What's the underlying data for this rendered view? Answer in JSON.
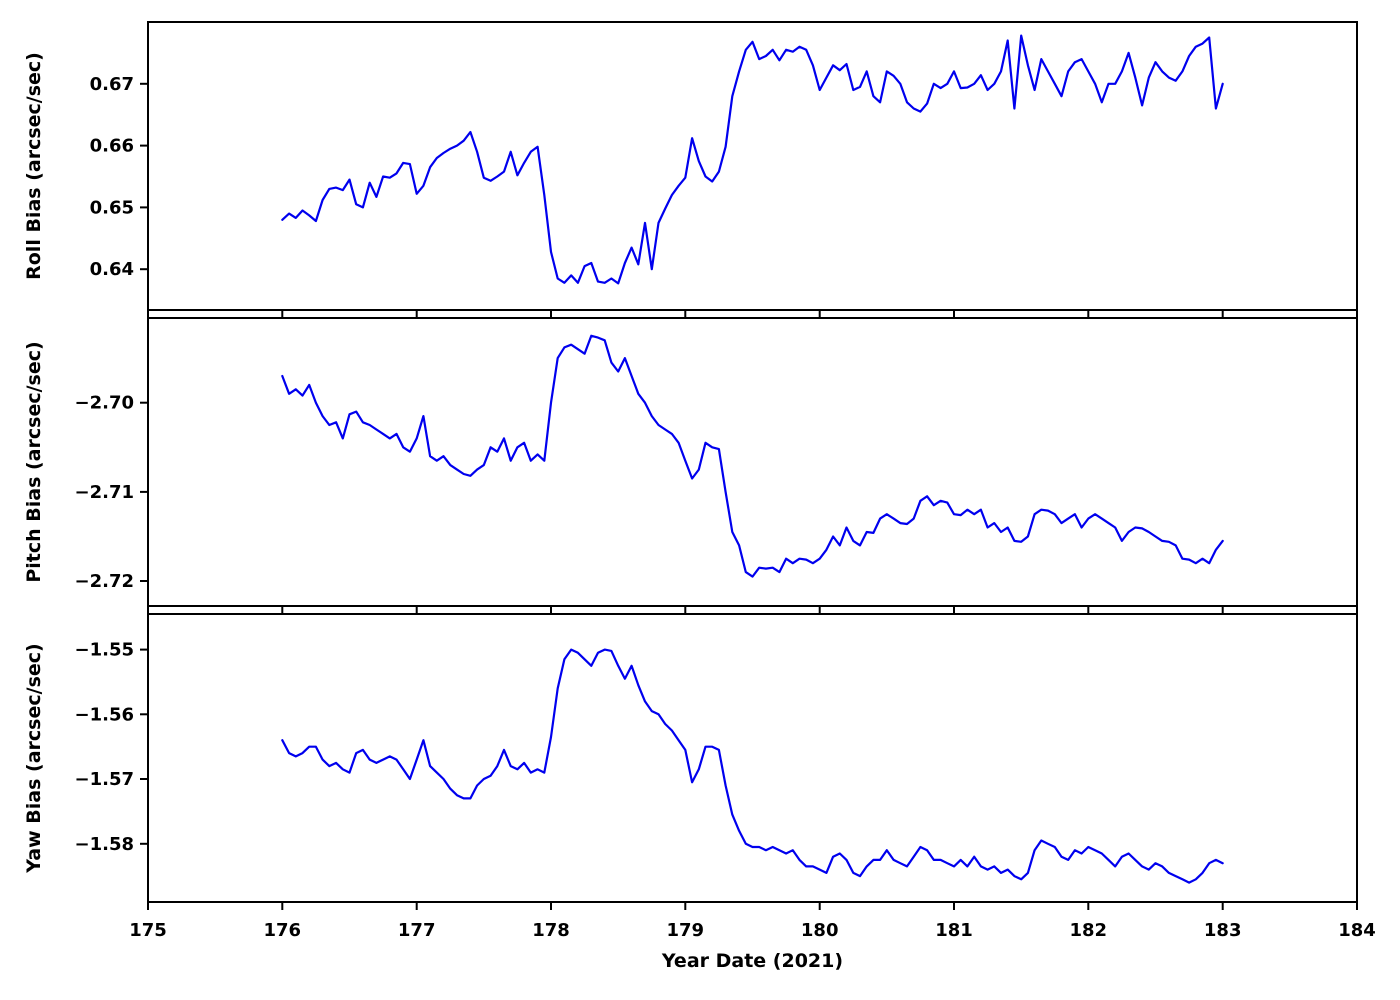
{
  "figure": {
    "background": "#ffffff",
    "line_color": "#0000ee",
    "axis_color": "#000000"
  },
  "chart_data": {
    "type": "line",
    "xlabel": "Year Date (2021)",
    "xlim": [
      175,
      184
    ],
    "xticks": [
      175,
      176,
      177,
      178,
      179,
      180,
      181,
      182,
      183,
      184
    ],
    "xtick_labels": [
      "175",
      "176",
      "177",
      "178",
      "179",
      "180",
      "181",
      "182",
      "183",
      "184"
    ],
    "grid": false,
    "legend": "none",
    "x": [
      176,
      176.05,
      176.1,
      176.15,
      176.2,
      176.25,
      176.3,
      176.35,
      176.4,
      176.45,
      176.5,
      176.55,
      176.6,
      176.65,
      176.7,
      176.75,
      176.8,
      176.85,
      176.9,
      176.95,
      177,
      177.05,
      177.1,
      177.15,
      177.2,
      177.25,
      177.3,
      177.35,
      177.4,
      177.45,
      177.5,
      177.55,
      177.6,
      177.65,
      177.7,
      177.75,
      177.8,
      177.85,
      177.9,
      177.95,
      178,
      178.05,
      178.1,
      178.15,
      178.2,
      178.25,
      178.3,
      178.35,
      178.4,
      178.45,
      178.5,
      178.55,
      178.6,
      178.65,
      178.7,
      178.75,
      178.8,
      178.85,
      178.9,
      178.95,
      179,
      179.05,
      179.1,
      179.15,
      179.2,
      179.25,
      179.3,
      179.35,
      179.4,
      179.45,
      179.5,
      179.55,
      179.6,
      179.65,
      179.7,
      179.75,
      179.8,
      179.85,
      179.9,
      179.95,
      180,
      180.05,
      180.1,
      180.15,
      180.2,
      180.25,
      180.3,
      180.35,
      180.4,
      180.45,
      180.5,
      180.55,
      180.6,
      180.65,
      180.7,
      180.75,
      180.8,
      180.85,
      180.9,
      180.95,
      181,
      181.05,
      181.1,
      181.15,
      181.2,
      181.25,
      181.3,
      181.35,
      181.4,
      181.45,
      181.5,
      181.55,
      181.6,
      181.65,
      181.7,
      181.75,
      181.8,
      181.85,
      181.9,
      181.95,
      182,
      182.05,
      182.1,
      182.15,
      182.2,
      182.25,
      182.3,
      182.35,
      182.4,
      182.45,
      182.5,
      182.55,
      182.6,
      182.65,
      182.7,
      182.75,
      182.8,
      182.85,
      182.9,
      182.95,
      183
    ],
    "series": [
      {
        "name": "roll",
        "ylabel": "Roll Bias (arcsec/sec)",
        "ylim": [
          0.6334,
          0.68
        ],
        "yticks": [
          0.64,
          0.65,
          0.66,
          0.67
        ],
        "ytick_labels": [
          "0.64",
          "0.65",
          "0.66",
          "0.67"
        ],
        "values": [
          0.648,
          0.649,
          0.6483,
          0.6495,
          0.6487,
          0.6478,
          0.6512,
          0.653,
          0.6532,
          0.6528,
          0.6545,
          0.6505,
          0.65,
          0.654,
          0.6517,
          0.655,
          0.6548,
          0.6555,
          0.6572,
          0.657,
          0.6522,
          0.6535,
          0.6565,
          0.658,
          0.6588,
          0.6595,
          0.66,
          0.6608,
          0.6622,
          0.659,
          0.6548,
          0.6543,
          0.655,
          0.6558,
          0.659,
          0.6552,
          0.6572,
          0.659,
          0.6598,
          0.652,
          0.6428,
          0.6385,
          0.6378,
          0.639,
          0.6378,
          0.6405,
          0.641,
          0.638,
          0.6378,
          0.6385,
          0.6377,
          0.641,
          0.6435,
          0.6408,
          0.6475,
          0.64,
          0.6475,
          0.6498,
          0.652,
          0.6535,
          0.6548,
          0.6612,
          0.6575,
          0.655,
          0.6542,
          0.6558,
          0.6598,
          0.668,
          0.672,
          0.6755,
          0.6768,
          0.674,
          0.6745,
          0.6755,
          0.6738,
          0.6755,
          0.6752,
          0.676,
          0.6755,
          0.673,
          0.669,
          0.671,
          0.673,
          0.6722,
          0.6732,
          0.669,
          0.6695,
          0.672,
          0.668,
          0.667,
          0.672,
          0.6713,
          0.67,
          0.667,
          0.666,
          0.6655,
          0.6668,
          0.67,
          0.6693,
          0.67,
          0.672,
          0.6693,
          0.6694,
          0.67,
          0.6714,
          0.669,
          0.67,
          0.672,
          0.677,
          0.666,
          0.6778,
          0.673,
          0.669,
          0.674,
          0.672,
          0.67,
          0.668,
          0.672,
          0.6735,
          0.674,
          0.672,
          0.67,
          0.667,
          0.67,
          0.67,
          0.672,
          0.675,
          0.671,
          0.6665,
          0.671,
          0.6735,
          0.672,
          0.671,
          0.6705,
          0.672,
          0.6745,
          0.676,
          0.6765,
          0.6775,
          0.666,
          0.67
        ]
      },
      {
        "name": "pitch",
        "ylabel": "Pitch Bias (arcsec/sec)",
        "ylim": [
          -2.7228,
          -2.6905
        ],
        "yticks": [
          -2.7,
          -2.71,
          -2.72
        ],
        "ytick_labels": [
          "−2.70",
          "−2.71",
          "−2.72"
        ],
        "values": [
          -2.697,
          -2.699,
          -2.6985,
          -2.6992,
          -2.698,
          -2.7,
          -2.7015,
          -2.7025,
          -2.7022,
          -2.704,
          -2.7013,
          -2.701,
          -2.7022,
          -2.7025,
          -2.703,
          -2.7035,
          -2.704,
          -2.7035,
          -2.705,
          -2.7055,
          -2.704,
          -2.7015,
          -2.706,
          -2.7065,
          -2.706,
          -2.707,
          -2.7075,
          -2.708,
          -2.7082,
          -2.7075,
          -2.707,
          -2.705,
          -2.7055,
          -2.704,
          -2.7065,
          -2.705,
          -2.7045,
          -2.7065,
          -2.7058,
          -2.7065,
          -2.7,
          -2.695,
          -2.6938,
          -2.6935,
          -2.694,
          -2.6945,
          -2.6925,
          -2.6927,
          -2.693,
          -2.6955,
          -2.6965,
          -2.695,
          -2.697,
          -2.699,
          -2.7,
          -2.7015,
          -2.7025,
          -2.703,
          -2.7035,
          -2.7045,
          -2.7065,
          -2.7085,
          -2.7075,
          -2.7045,
          -2.705,
          -2.7052,
          -2.71,
          -2.7145,
          -2.716,
          -2.719,
          -2.7195,
          -2.7185,
          -2.7186,
          -2.7185,
          -2.719,
          -2.7175,
          -2.718,
          -2.7175,
          -2.7176,
          -2.718,
          -2.7175,
          -2.7165,
          -2.715,
          -2.716,
          -2.714,
          -2.7155,
          -2.716,
          -2.7145,
          -2.7146,
          -2.713,
          -2.7125,
          -2.713,
          -2.7135,
          -2.7136,
          -2.713,
          -2.711,
          -2.7105,
          -2.7115,
          -2.711,
          -2.7112,
          -2.7125,
          -2.7126,
          -2.712,
          -2.7125,
          -2.712,
          -2.714,
          -2.7135,
          -2.7145,
          -2.714,
          -2.7155,
          -2.7156,
          -2.715,
          -2.7125,
          -2.712,
          -2.7121,
          -2.7125,
          -2.7135,
          -2.713,
          -2.7125,
          -2.714,
          -2.713,
          -2.7125,
          -2.713,
          -2.7135,
          -2.714,
          -2.7155,
          -2.7145,
          -2.714,
          -2.7141,
          -2.7145,
          -2.715,
          -2.7155,
          -2.7156,
          -2.716,
          -2.7175,
          -2.7176,
          -2.718,
          -2.7175,
          -2.718,
          -2.7165,
          -2.7155
        ]
      },
      {
        "name": "yaw",
        "ylabel": "Yaw Bias (arcsec/sec)",
        "ylim": [
          -1.589,
          -1.5445
        ],
        "yticks": [
          -1.55,
          -1.56,
          -1.57,
          -1.58
        ],
        "ytick_labels": [
          "−1.55",
          "−1.56",
          "−1.57",
          "−1.58"
        ],
        "values": [
          -1.564,
          -1.566,
          -1.5665,
          -1.566,
          -1.565,
          -1.565,
          -1.567,
          -1.568,
          -1.5675,
          -1.5685,
          -1.569,
          -1.566,
          -1.5655,
          -1.567,
          -1.5675,
          -1.567,
          -1.5665,
          -1.567,
          -1.5685,
          -1.57,
          -1.567,
          -1.564,
          -1.568,
          -1.569,
          -1.57,
          -1.5715,
          -1.5725,
          -1.573,
          -1.573,
          -1.571,
          -1.57,
          -1.5695,
          -1.568,
          -1.5655,
          -1.568,
          -1.5685,
          -1.5675,
          -1.569,
          -1.5685,
          -1.569,
          -1.5635,
          -1.556,
          -1.5515,
          -1.55,
          -1.5505,
          -1.5515,
          -1.5525,
          -1.5505,
          -1.55,
          -1.5502,
          -1.5525,
          -1.5545,
          -1.5525,
          -1.5555,
          -1.558,
          -1.5595,
          -1.56,
          -1.5615,
          -1.5625,
          -1.564,
          -1.5655,
          -1.5705,
          -1.5685,
          -1.565,
          -1.565,
          -1.5655,
          -1.571,
          -1.5755,
          -1.578,
          -1.58,
          -1.5805,
          -1.5805,
          -1.581,
          -1.5805,
          -1.581,
          -1.5815,
          -1.581,
          -1.5825,
          -1.5835,
          -1.5835,
          -1.584,
          -1.5845,
          -1.582,
          -1.5815,
          -1.5825,
          -1.5845,
          -1.585,
          -1.5835,
          -1.5825,
          -1.5825,
          -1.581,
          -1.5825,
          -1.583,
          -1.5835,
          -1.582,
          -1.5805,
          -1.581,
          -1.5825,
          -1.5825,
          -1.583,
          -1.5835,
          -1.5825,
          -1.5835,
          -1.582,
          -1.5835,
          -1.584,
          -1.5835,
          -1.5845,
          -1.584,
          -1.585,
          -1.5855,
          -1.5845,
          -1.581,
          -1.5795,
          -1.58,
          -1.5805,
          -1.582,
          -1.5825,
          -1.581,
          -1.5815,
          -1.5805,
          -1.581,
          -1.5815,
          -1.5825,
          -1.5835,
          -1.582,
          -1.5815,
          -1.5825,
          -1.5835,
          -1.584,
          -1.583,
          -1.5835,
          -1.5845,
          -1.585,
          -1.5855,
          -1.586,
          -1.5855,
          -1.5845,
          -1.583,
          -1.5825,
          -1.583
        ]
      }
    ]
  }
}
